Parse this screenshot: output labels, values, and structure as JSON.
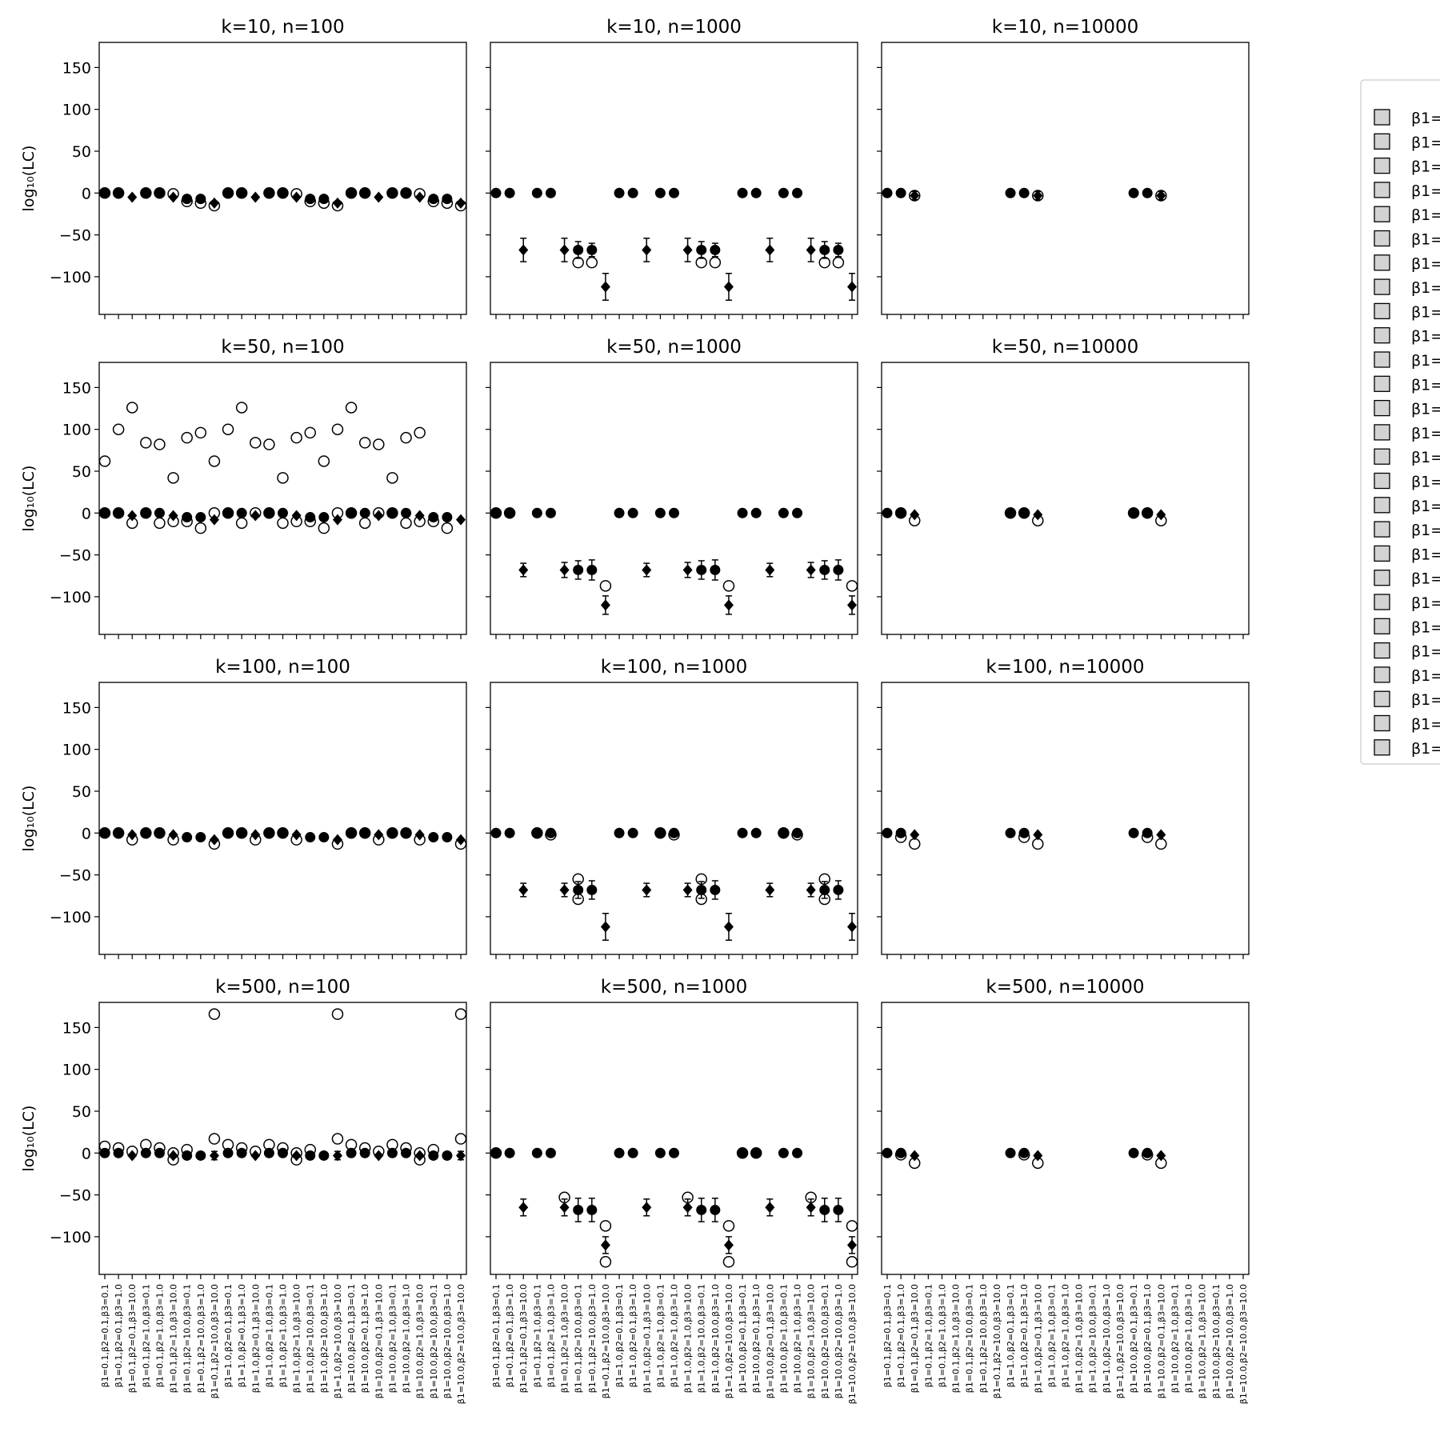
{
  "figure": {
    "ylabel": "log₁₀(LC)"
  },
  "legend": {
    "placement": "right",
    "entry_label": "β1=",
    "entry_count": 27,
    "swatch_color": "#d3d3d3"
  },
  "chart_data": {
    "type": "scatter",
    "subtype": "point estimates with error bars",
    "grid": false,
    "ylim": [
      -145,
      180
    ],
    "yticks": [
      150,
      100,
      50,
      0,
      -50,
      -100
    ],
    "categories": [
      "β1=0.1,β2=0.1,β3=0.1",
      "β1=0.1,β2=0.1,β3=1.0",
      "β1=0.1,β2=0.1,β3=10.0",
      "β1=0.1,β2=1.0,β3=0.1",
      "β1=0.1,β2=1.0,β3=1.0",
      "β1=0.1,β2=1.0,β3=10.0",
      "β1=0.1,β2=10.0,β3=0.1",
      "β1=0.1,β2=10.0,β3=1.0",
      "β1=0.1,β2=10.0,β3=10.0",
      "β1=1.0,β2=0.1,β3=0.1",
      "β1=1.0,β2=0.1,β3=1.0",
      "β1=1.0,β2=0.1,β3=10.0",
      "β1=1.0,β2=1.0,β3=0.1",
      "β1=1.0,β2=1.0,β3=1.0",
      "β1=1.0,β2=1.0,β3=10.0",
      "β1=1.0,β2=10.0,β3=0.1",
      "β1=1.0,β2=10.0,β3=1.0",
      "β1=1.0,β2=10.0,β3=10.0",
      "β1=10.0,β2=0.1,β3=0.1",
      "β1=10.0,β2=0.1,β3=1.0",
      "β1=10.0,β2=0.1,β3=10.0",
      "β1=10.0,β2=1.0,β3=0.1",
      "β1=10.0,β2=1.0,β3=1.0",
      "β1=10.0,β2=1.0,β3=10.0",
      "β1=10.0,β2=10.0,β3=0.1",
      "β1=10.0,β2=10.0,β3=1.0",
      "β1=10.0,β2=10.0,β3=10.0"
    ],
    "panels": [
      {
        "title": "k=10, n=100",
        "filled": [
          0,
          0,
          -5,
          0,
          0,
          -5,
          -7,
          -7,
          -12,
          0,
          0,
          -5,
          0,
          0,
          -5,
          -7,
          -7,
          -12,
          0,
          0,
          -5,
          0,
          0,
          -5,
          -7,
          -7,
          -12
        ],
        "filled_err": [
          0,
          0,
          0,
          0,
          0,
          0,
          0,
          0,
          0,
          0,
          0,
          0,
          0,
          0,
          0,
          0,
          0,
          0,
          0,
          0,
          0,
          0,
          0,
          0,
          0,
          0,
          0
        ],
        "open": [
          0,
          0,
          null,
          0,
          0,
          -1,
          -10,
          -12,
          -15,
          0,
          0,
          null,
          0,
          0,
          -1,
          -10,
          -12,
          -15,
          0,
          0,
          null,
          0,
          0,
          -1,
          -10,
          -12,
          -15
        ]
      },
      {
        "title": "k=10, n=1000",
        "filled": [
          0,
          0,
          -68,
          0,
          0,
          -68,
          -68,
          -68,
          -112,
          0,
          0,
          -68,
          0,
          0,
          -68,
          -68,
          -68,
          -112,
          0,
          0,
          -68,
          0,
          0,
          -68,
          -68,
          -68,
          -112
        ],
        "filled_err": [
          0,
          0,
          14,
          0,
          0,
          14,
          10,
          8,
          16,
          0,
          0,
          14,
          0,
          0,
          14,
          10,
          8,
          16,
          0,
          0,
          14,
          0,
          0,
          14,
          10,
          8,
          16
        ],
        "open": [
          null,
          null,
          null,
          null,
          null,
          null,
          -83,
          -83,
          null,
          null,
          null,
          null,
          null,
          null,
          null,
          -83,
          -83,
          null,
          null,
          null,
          null,
          null,
          null,
          null,
          -83,
          -83,
          null
        ]
      },
      {
        "title": "k=10, n=10000",
        "filled": [
          0,
          0,
          -3,
          null,
          null,
          null,
          null,
          null,
          null,
          0,
          0,
          -3,
          null,
          null,
          null,
          null,
          null,
          null,
          0,
          0,
          -3,
          null,
          null,
          null,
          null,
          null,
          null
        ],
        "filled_err": [
          0,
          0,
          5,
          0,
          0,
          0,
          0,
          0,
          0,
          0,
          0,
          5,
          0,
          0,
          0,
          0,
          0,
          0,
          0,
          0,
          5,
          0,
          0,
          0,
          0,
          0,
          0
        ],
        "open": [
          null,
          null,
          -3,
          null,
          null,
          null,
          null,
          null,
          null,
          null,
          null,
          -3,
          null,
          null,
          null,
          null,
          null,
          null,
          null,
          null,
          -3,
          null,
          null,
          null,
          null,
          null,
          null
        ]
      },
      {
        "title": "k=50, n=100",
        "filled": [
          0,
          0,
          -3,
          0,
          0,
          -3,
          -5,
          -5,
          -8,
          0,
          0,
          -3,
          0,
          0,
          -3,
          -5,
          -5,
          -8,
          0,
          0,
          -3,
          0,
          0,
          -3,
          -5,
          -5,
          -8
        ],
        "filled_err": [
          0,
          0,
          0,
          0,
          0,
          0,
          0,
          0,
          0,
          0,
          0,
          0,
          0,
          0,
          0,
          0,
          0,
          0,
          0,
          0,
          0,
          0,
          0,
          0,
          0,
          0,
          0
        ],
        "open": [
          62,
          100,
          126,
          84,
          82,
          42,
          90,
          96,
          62,
          100,
          126,
          84,
          82,
          42,
          90,
          96,
          62,
          100,
          126,
          84,
          82,
          42,
          90,
          96,
          null,
          null,
          null
        ],
        "open2": [
          0,
          0,
          -12,
          0,
          -12,
          -10,
          -10,
          -18,
          0,
          0,
          -12,
          0,
          0,
          -12,
          -10,
          -10,
          -18,
          0,
          0,
          -12,
          0,
          0,
          -12,
          -10,
          -10,
          -18,
          null
        ]
      },
      {
        "title": "k=50, n=1000",
        "filled": [
          0,
          0,
          -68,
          0,
          0,
          -68,
          -68,
          -68,
          -110,
          0,
          0,
          -68,
          0,
          0,
          -68,
          -68,
          -68,
          -110,
          0,
          0,
          -68,
          0,
          0,
          -68,
          -68,
          -68,
          -110
        ],
        "filled_err": [
          0,
          0,
          8,
          0,
          0,
          9,
          11,
          12,
          11,
          0,
          0,
          8,
          0,
          0,
          9,
          11,
          12,
          11,
          0,
          0,
          8,
          0,
          0,
          9,
          11,
          12,
          11
        ],
        "open": [
          0,
          0,
          null,
          null,
          null,
          null,
          null,
          null,
          -87,
          null,
          null,
          null,
          null,
          null,
          null,
          null,
          null,
          -87,
          null,
          null,
          null,
          null,
          null,
          null,
          null,
          null,
          -87
        ]
      },
      {
        "title": "k=50, n=10000",
        "filled": [
          0,
          0,
          -2,
          null,
          null,
          null,
          null,
          null,
          null,
          0,
          0,
          -2,
          null,
          null,
          null,
          null,
          null,
          null,
          0,
          0,
          -2,
          null,
          null,
          null,
          null,
          null,
          null
        ],
        "filled_err": [
          0,
          0,
          0,
          0,
          0,
          0,
          0,
          0,
          0,
          0,
          0,
          0,
          0,
          0,
          0,
          0,
          0,
          0,
          0,
          0,
          0,
          0,
          0,
          0,
          0,
          0,
          0
        ],
        "open": [
          null,
          0,
          -9,
          null,
          null,
          null,
          null,
          null,
          null,
          0,
          0,
          -9,
          null,
          null,
          null,
          null,
          null,
          null,
          0,
          0,
          -9,
          null,
          null,
          null,
          null,
          null,
          null
        ]
      },
      {
        "title": "k=100, n=100",
        "filled": [
          0,
          0,
          -2,
          0,
          0,
          -2,
          -5,
          -5,
          -8,
          0,
          0,
          -2,
          0,
          0,
          -2,
          -5,
          -5,
          -8,
          0,
          0,
          -2,
          0,
          0,
          -2,
          -5,
          -5,
          -8
        ],
        "filled_err": [
          0,
          0,
          0,
          0,
          0,
          0,
          0,
          0,
          0,
          0,
          0,
          0,
          0,
          0,
          0,
          0,
          0,
          0,
          0,
          0,
          0,
          0,
          0,
          0,
          0,
          0,
          0
        ],
        "open": [
          0,
          0,
          -8,
          0,
          0,
          -8,
          null,
          null,
          -13,
          0,
          0,
          -8,
          0,
          0,
          -8,
          null,
          null,
          -13,
          0,
          0,
          -8,
          0,
          0,
          -8,
          null,
          null,
          -13
        ]
      },
      {
        "title": "k=100, n=1000",
        "filled": [
          0,
          0,
          -68,
          0,
          0,
          -68,
          -68,
          -68,
          -112,
          0,
          0,
          -68,
          0,
          0,
          -68,
          -68,
          -68,
          -112,
          0,
          0,
          -68,
          0,
          0,
          -68,
          -68,
          -68,
          -112
        ],
        "filled_err": [
          0,
          0,
          8,
          0,
          0,
          8,
          10,
          11,
          16,
          0,
          0,
          8,
          0,
          0,
          8,
          10,
          11,
          16,
          0,
          0,
          8,
          0,
          0,
          8,
          10,
          11,
          16
        ],
        "open": [
          null,
          null,
          null,
          0,
          -2,
          null,
          -55,
          null,
          null,
          null,
          null,
          null,
          0,
          -2,
          null,
          -55,
          null,
          null,
          null,
          null,
          null,
          0,
          -2,
          null,
          -55,
          null,
          null
        ],
        "open2": [
          null,
          null,
          null,
          null,
          null,
          null,
          -79,
          null,
          null,
          null,
          null,
          null,
          null,
          null,
          null,
          -79,
          null,
          null,
          null,
          null,
          null,
          null,
          null,
          null,
          -79,
          null,
          null
        ]
      },
      {
        "title": "k=100, n=10000",
        "filled": [
          0,
          0,
          -2,
          null,
          null,
          null,
          null,
          null,
          null,
          0,
          0,
          -2,
          null,
          null,
          null,
          null,
          null,
          null,
          0,
          0,
          -2,
          null,
          null,
          null,
          null,
          null,
          null
        ],
        "filled_err": [
          0,
          0,
          0,
          0,
          0,
          0,
          0,
          0,
          0,
          0,
          0,
          0,
          0,
          0,
          0,
          0,
          0,
          0,
          0,
          0,
          0,
          0,
          0,
          0,
          0,
          0,
          0
        ],
        "open": [
          null,
          -5,
          -13,
          null,
          null,
          null,
          null,
          null,
          null,
          null,
          -5,
          -13,
          null,
          null,
          null,
          null,
          null,
          null,
          null,
          -5,
          -13,
          null,
          null,
          null,
          null,
          null,
          null
        ]
      },
      {
        "title": "k=500, n=100",
        "filled": [
          0,
          0,
          -3,
          0,
          0,
          -3,
          -3,
          -3,
          -3,
          0,
          0,
          -3,
          0,
          0,
          -3,
          -3,
          -3,
          -3,
          0,
          0,
          -3,
          0,
          0,
          -3,
          -3,
          -3,
          -3
        ],
        "filled_err": [
          0,
          0,
          0,
          0,
          0,
          0,
          0,
          0,
          5,
          0,
          0,
          0,
          0,
          0,
          0,
          0,
          0,
          5,
          0,
          0,
          0,
          0,
          0,
          0,
          0,
          0,
          5
        ],
        "open": [
          8,
          6,
          2,
          10,
          6,
          0,
          4,
          null,
          166,
          10,
          6,
          2,
          10,
          6,
          0,
          4,
          null,
          166,
          10,
          6,
          2,
          10,
          6,
          0,
          4,
          null,
          166
        ],
        "open2": [
          null,
          null,
          null,
          null,
          null,
          -8,
          null,
          null,
          17,
          null,
          null,
          null,
          null,
          null,
          -8,
          null,
          null,
          17,
          null,
          null,
          null,
          null,
          null,
          -8,
          null,
          null,
          17
        ]
      },
      {
        "title": "k=500, n=1000",
        "filled": [
          0,
          0,
          -65,
          0,
          0,
          -65,
          -68,
          -68,
          -110,
          0,
          0,
          -65,
          0,
          0,
          -65,
          -68,
          -68,
          -110,
          0,
          0,
          -65,
          0,
          0,
          -65,
          -68,
          -68,
          -110
        ],
        "filled_err": [
          0,
          0,
          10,
          0,
          0,
          10,
          14,
          14,
          10,
          0,
          0,
          10,
          0,
          0,
          10,
          14,
          14,
          10,
          0,
          0,
          10,
          0,
          0,
          10,
          14,
          14,
          10
        ],
        "open": [
          0,
          null,
          null,
          null,
          null,
          -53,
          null,
          null,
          -87,
          null,
          null,
          null,
          null,
          null,
          -53,
          null,
          null,
          -87,
          0,
          0,
          null,
          null,
          null,
          -53,
          null,
          null,
          -87
        ],
        "open2": [
          null,
          null,
          null,
          null,
          null,
          null,
          null,
          null,
          -130,
          null,
          null,
          null,
          null,
          null,
          null,
          null,
          null,
          -130,
          null,
          null,
          null,
          null,
          null,
          null,
          null,
          null,
          -130
        ]
      },
      {
        "title": "k=500, n=10000",
        "filled": [
          0,
          0,
          -3,
          null,
          null,
          null,
          null,
          null,
          null,
          0,
          0,
          -3,
          null,
          null,
          null,
          null,
          null,
          null,
          0,
          0,
          -3,
          null,
          null,
          null,
          null,
          null,
          null
        ],
        "filled_err": [
          0,
          0,
          0,
          0,
          0,
          0,
          0,
          0,
          0,
          0,
          0,
          0,
          0,
          0,
          0,
          0,
          0,
          0,
          0,
          0,
          0,
          0,
          0,
          0,
          0,
          0,
          0
        ],
        "open": [
          null,
          -2,
          -12,
          null,
          null,
          null,
          null,
          null,
          null,
          null,
          -2,
          -12,
          null,
          null,
          null,
          null,
          null,
          null,
          null,
          -2,
          -12,
          null,
          null,
          null,
          null,
          null,
          null
        ]
      }
    ]
  }
}
